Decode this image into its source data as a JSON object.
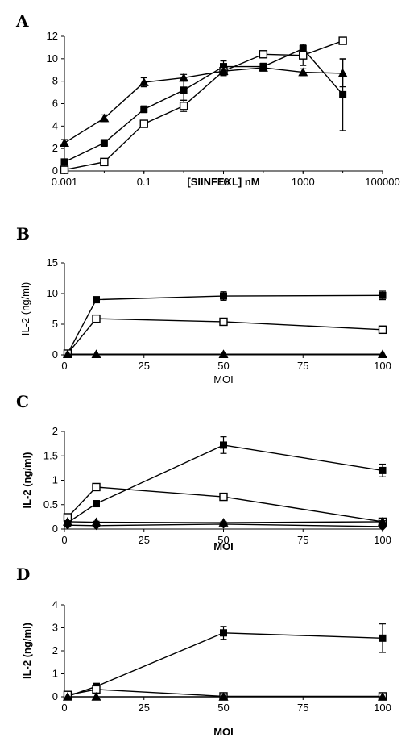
{
  "panels": [
    {
      "letter": "A"
    },
    {
      "letter": "B"
    },
    {
      "letter": "C"
    },
    {
      "letter": "D"
    }
  ],
  "chart_data": [
    {
      "panel": "A",
      "type": "line",
      "xscale": "log",
      "xlabel": "[SIINFEKL] nM",
      "ylabel": "",
      "xlim": [
        0.001,
        100000
      ],
      "ylim": [
        0,
        12
      ],
      "xticks": [
        "0.001",
        "0.1",
        "10",
        "1000",
        "100000"
      ],
      "yticks": [
        "0",
        "2",
        "4",
        "6",
        "8",
        "10",
        "12"
      ],
      "grid": false,
      "series": [
        {
          "marker": "filled-square",
          "x": [
            0.001,
            0.01,
            0.1,
            1,
            10,
            100,
            1000,
            10000
          ],
          "y": [
            0.8,
            2.5,
            5.5,
            7.2,
            9.3,
            9.3,
            10.9,
            6.8
          ],
          "err": [
            0.2,
            0.3,
            0.3,
            0.9,
            0.5,
            0.3,
            0.4,
            3.2
          ]
        },
        {
          "marker": "open-square",
          "x": [
            0.001,
            0.01,
            0.1,
            1,
            10,
            100,
            1000,
            10000
          ],
          "y": [
            0.1,
            0.8,
            4.2,
            5.8,
            8.9,
            10.4,
            10.3,
            11.6
          ],
          "err": [
            0.1,
            0.2,
            0.3,
            0.5,
            0.4,
            0.2,
            0.9,
            0.3
          ]
        },
        {
          "marker": "filled-triangle",
          "x": [
            0.001,
            0.01,
            0.1,
            1,
            10,
            100,
            1000,
            10000
          ],
          "y": [
            2.5,
            4.7,
            7.9,
            8.3,
            8.9,
            9.2,
            8.8,
            8.7
          ],
          "err": [
            0.3,
            0.3,
            0.4,
            0.3,
            0.4,
            0.3,
            0.3,
            1.2
          ]
        }
      ]
    },
    {
      "panel": "B",
      "type": "line",
      "xlabel": "MOI",
      "ylabel": "IL-2 (ng/ml)",
      "xlim": [
        0,
        100
      ],
      "ylim": [
        0,
        15
      ],
      "xticks": [
        "0",
        "25",
        "50",
        "75",
        "100"
      ],
      "yticks": [
        "0",
        "5",
        "10",
        "15"
      ],
      "grid": false,
      "series": [
        {
          "marker": "filled-square",
          "x": [
            1,
            10,
            50,
            100
          ],
          "y": [
            0.2,
            9.0,
            9.6,
            9.7
          ],
          "err": [
            0.1,
            0.3,
            0.7,
            0.7
          ]
        },
        {
          "marker": "open-square",
          "x": [
            1,
            10,
            50,
            100
          ],
          "y": [
            0.2,
            5.9,
            5.4,
            4.1
          ],
          "err": [
            0.1,
            0.3,
            0.5,
            0.6
          ]
        },
        {
          "marker": "filled-triangle",
          "x": [
            1,
            10,
            50,
            100
          ],
          "y": [
            0.1,
            0.1,
            0.1,
            0.1
          ],
          "err": [
            0,
            0,
            0,
            0
          ]
        }
      ]
    },
    {
      "panel": "C",
      "type": "line",
      "xlabel": "MOI",
      "ylabel": "IL-2 (ng/ml)",
      "xlim": [
        0,
        100
      ],
      "ylim": [
        0,
        2
      ],
      "xticks": [
        "0",
        "25",
        "50",
        "75",
        "100"
      ],
      "yticks": [
        "0",
        "0.5",
        "1",
        "1.5",
        "2"
      ],
      "grid": false,
      "series": [
        {
          "marker": "filled-square",
          "x": [
            1,
            10,
            50,
            100
          ],
          "y": [
            0.13,
            0.52,
            1.72,
            1.2
          ],
          "err": [
            0.03,
            0.06,
            0.17,
            0.13
          ]
        },
        {
          "marker": "open-square",
          "x": [
            1,
            10,
            50,
            100
          ],
          "y": [
            0.24,
            0.86,
            0.66,
            0.15
          ],
          "err": [
            0.03,
            0.05,
            0.07,
            0.03
          ]
        },
        {
          "marker": "filled-triangle",
          "x": [
            1,
            10,
            50,
            100
          ],
          "y": [
            0.15,
            0.14,
            0.13,
            0.15
          ],
          "err": [
            0.02,
            0.02,
            0.02,
            0.02
          ]
        },
        {
          "marker": "filled-diamond",
          "x": [
            1,
            10,
            50,
            100
          ],
          "y": [
            0.08,
            0.07,
            0.1,
            0.05
          ],
          "err": [
            0.01,
            0.01,
            0.01,
            0.01
          ]
        }
      ]
    },
    {
      "panel": "D",
      "type": "line",
      "xlabel": "MOI",
      "ylabel": "IL-2 (ng/ml)",
      "xlim": [
        0,
        100
      ],
      "ylim": [
        0,
        4
      ],
      "xticks": [
        "0",
        "25",
        "50",
        "75",
        "100"
      ],
      "yticks": [
        "0",
        "1",
        "2",
        "3",
        "4"
      ],
      "grid": false,
      "series": [
        {
          "marker": "filled-square",
          "x": [
            1,
            10,
            50,
            100
          ],
          "y": [
            0.02,
            0.45,
            2.78,
            2.55
          ],
          "err": [
            0.02,
            0.08,
            0.28,
            0.62
          ]
        },
        {
          "marker": "open-square",
          "x": [
            1,
            10,
            50,
            100
          ],
          "y": [
            0.08,
            0.32,
            0.02,
            0.02
          ],
          "err": [
            0.02,
            0.03,
            0.02,
            0.02
          ]
        },
        {
          "marker": "filled-triangle",
          "x": [
            1,
            10,
            50,
            100
          ],
          "y": [
            0.0,
            0.0,
            0.0,
            0.0
          ],
          "err": [
            0,
            0,
            0,
            0
          ]
        }
      ]
    }
  ]
}
